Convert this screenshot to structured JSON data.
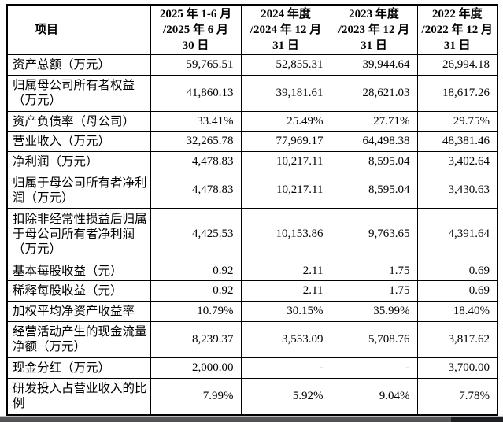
{
  "table": {
    "columns": [
      {
        "id": "item",
        "lines": [
          "项目"
        ]
      },
      {
        "id": "p2025",
        "lines": [
          "2025 年 1-6 月",
          "/2025 年 6 月",
          "30 日"
        ]
      },
      {
        "id": "p2024",
        "lines": [
          "2024 年度",
          "/2024 年 12 月",
          "31 日"
        ]
      },
      {
        "id": "p2023",
        "lines": [
          "2023 年度",
          "/2023 年 12 月",
          "31 日"
        ]
      },
      {
        "id": "p2022",
        "lines": [
          "2022 年度",
          "/2022 年 12 月",
          "31 日"
        ]
      }
    ],
    "rows": [
      {
        "label": "资产总额（万元）",
        "values": [
          "59,765.51",
          "52,855.31",
          "39,944.64",
          "26,994.18"
        ]
      },
      {
        "label": "归属母公司所有者权益（万元）",
        "values": [
          "41,860.13",
          "39,181.61",
          "28,621.03",
          "18,617.26"
        ]
      },
      {
        "label": "资产负债率（母公司）",
        "values": [
          "33.41%",
          "25.49%",
          "27.71%",
          "29.75%"
        ]
      },
      {
        "label": "营业收入（万元）",
        "values": [
          "32,265.78",
          "77,969.17",
          "64,498.38",
          "48,381.46"
        ]
      },
      {
        "label": "净利润（万元）",
        "values": [
          "4,478.83",
          "10,217.11",
          "8,595.04",
          "3,402.64"
        ]
      },
      {
        "label": "归属于母公司所有者净利润（万元）",
        "values": [
          "4,478.83",
          "10,217.11",
          "8,595.04",
          "3,430.63"
        ]
      },
      {
        "label": "扣除非经常性损益后归属于母公司所有者净利润（万元）",
        "values": [
          "4,425.53",
          "10,153.86",
          "9,763.65",
          "4,391.64"
        ]
      },
      {
        "label": "基本每股收益（元）",
        "values": [
          "0.92",
          "2.11",
          "1.75",
          "0.69"
        ]
      },
      {
        "label": "稀释每股收益（元）",
        "values": [
          "0.92",
          "2.11",
          "1.75",
          "0.69"
        ]
      },
      {
        "label": "加权平均净资产收益率",
        "values": [
          "10.79%",
          "30.15%",
          "35.99%",
          "18.40%"
        ]
      },
      {
        "label": "经营活动产生的现金流量净额（万元）",
        "values": [
          "8,239.37",
          "3,553.09",
          "5,708.76",
          "3,817.62"
        ]
      },
      {
        "label": "现金分红（万元）",
        "values": [
          "2,000.00",
          "-",
          "-",
          "3,700.00"
        ]
      },
      {
        "label": "研发投入占营业收入的比例",
        "values": [
          "7.99%",
          "5.92%",
          "9.04%",
          "7.78%"
        ]
      }
    ]
  },
  "colors": {
    "page_bg": "#ffffff",
    "table_border": "#000000",
    "text": "#000000",
    "bottom_bar": "#59595b",
    "bottom_bar_dark": "#1d1e22"
  }
}
